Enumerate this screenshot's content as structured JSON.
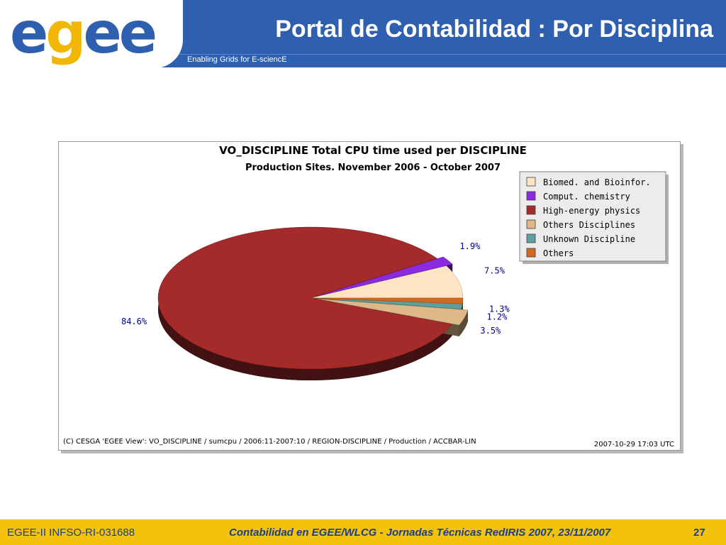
{
  "header": {
    "logo": "egee",
    "title": "Portal de Contabilidad : Por Disciplina",
    "subtitle": "Enabling Grids for E-sciencE"
  },
  "footer": {
    "left": "EGEE-II INFSO-RI-031688",
    "center": "Contabilidad en EGEE/WLCG - Jornadas Técnicas RedIRIS 2007, 23/11/2007",
    "page": "27"
  },
  "chart_data": {
    "type": "pie",
    "title": "VO_DISCIPLINE Total CPU time used per DISCIPLINE",
    "subtitle": "Production Sites. November 2006 - October 2007",
    "legend_position": "top-right",
    "slices": [
      {
        "name": "Biomed. and Bioinfor.",
        "value": 7.5,
        "label": "7.5%",
        "color": "#ffe4c4"
      },
      {
        "name": "Comput. chemistry",
        "value": 1.9,
        "label": "1.9%",
        "color": "#8a2be2"
      },
      {
        "name": "High-energy physics",
        "value": 84.6,
        "label": "84.6%",
        "color": "#a52a2a"
      },
      {
        "name": "Others Disciplines",
        "value": 3.5,
        "label": "3.5%",
        "color": "#deb887"
      },
      {
        "name": "Unknown Discipline",
        "value": 1.2,
        "label": "1.2%",
        "color": "#5f9ea0"
      },
      {
        "name": "Others",
        "value": 1.3,
        "label": "1.3%",
        "color": "#d2691e"
      }
    ],
    "credit": "(C) CESGA 'EGEE View': VO_DISCIPLINE / sumcpu / 2006:11-2007:10 / REGION-DISCIPLINE / Production / ACCBAR-LIN",
    "timestamp": "2007-10-29 17:03 UTC"
  }
}
